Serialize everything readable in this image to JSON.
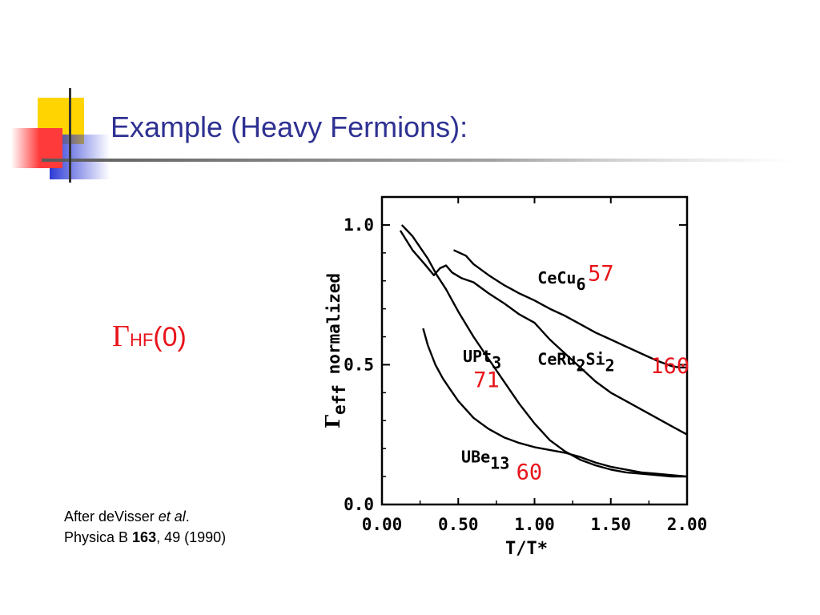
{
  "slide": {
    "title": "Example (Heavy Fermions):",
    "gamma_symbol": "Γ",
    "gamma_subscript": "HF",
    "gamma_argument": "(0)",
    "citation_line1_prefix": "After  deVisser ",
    "citation_line1_italic": "et al",
    "citation_line1_suffix": ".",
    "citation_line2_prefix": "Physica B ",
    "citation_line2_bold": "163",
    "citation_line2_suffix": ", 49 (1990)"
  },
  "colors": {
    "title": "#2e3192",
    "accent_red": "#e8141b",
    "deco_yellow": "#ffd400",
    "deco_blue": "#2e3bd6",
    "deco_red": "#ff3a3a"
  },
  "chart_data": {
    "type": "line",
    "xlabel": "T/T*",
    "ylabel_main": "Γ",
    "ylabel_sub": "eff",
    "ylabel_rest": " normalized",
    "xlim": [
      0.0,
      2.0
    ],
    "ylim": [
      0.0,
      1.1
    ],
    "xticks": [
      0.0,
      0.5,
      1.0,
      1.5,
      2.0
    ],
    "xtick_labels": [
      "0.00",
      "0.50",
      "1.00",
      "1.50",
      "2.00"
    ],
    "yticks": [
      0.0,
      0.5,
      1.0
    ],
    "ytick_labels": [
      "0.0",
      "0.5",
      "1.0"
    ],
    "series": [
      {
        "name": "CeCu6",
        "name_main": "CeCu",
        "name_sub": "6",
        "annotation": "57",
        "points": [
          [
            0.47,
            0.91
          ],
          [
            0.55,
            0.89
          ],
          [
            0.6,
            0.86
          ],
          [
            0.7,
            0.82
          ],
          [
            0.8,
            0.785
          ],
          [
            0.9,
            0.755
          ],
          [
            1.0,
            0.73
          ],
          [
            1.1,
            0.7
          ],
          [
            1.2,
            0.675
          ],
          [
            1.3,
            0.645
          ],
          [
            1.4,
            0.615
          ],
          [
            1.5,
            0.59
          ],
          [
            1.6,
            0.565
          ],
          [
            1.7,
            0.54
          ],
          [
            1.8,
            0.515
          ],
          [
            1.9,
            0.495
          ],
          [
            1.95,
            0.49
          ],
          [
            2.0,
            0.49
          ]
        ]
      },
      {
        "name": "CeRu2Si2",
        "name_main": "CeRu",
        "name_sub": "2",
        "name_main2": "Si",
        "name_sub2": "2",
        "annotation": "160",
        "points": [
          [
            0.12,
            0.98
          ],
          [
            0.2,
            0.91
          ],
          [
            0.28,
            0.86
          ],
          [
            0.34,
            0.82
          ],
          [
            0.38,
            0.845
          ],
          [
            0.42,
            0.855
          ],
          [
            0.46,
            0.83
          ],
          [
            0.52,
            0.81
          ],
          [
            0.6,
            0.795
          ],
          [
            0.7,
            0.755
          ],
          [
            0.8,
            0.72
          ],
          [
            0.9,
            0.68
          ],
          [
            1.0,
            0.65
          ],
          [
            1.1,
            0.59
          ],
          [
            1.2,
            0.54
          ],
          [
            1.3,
            0.49
          ],
          [
            1.4,
            0.44
          ],
          [
            1.5,
            0.4
          ],
          [
            1.6,
            0.37
          ],
          [
            1.7,
            0.34
          ],
          [
            1.8,
            0.31
          ],
          [
            1.9,
            0.28
          ],
          [
            2.0,
            0.25
          ]
        ]
      },
      {
        "name": "UPt3",
        "name_main": "UPt",
        "name_sub": "3",
        "annotation": "71",
        "points": [
          [
            0.13,
            1.0
          ],
          [
            0.2,
            0.96
          ],
          [
            0.25,
            0.92
          ],
          [
            0.3,
            0.88
          ],
          [
            0.36,
            0.82
          ],
          [
            0.42,
            0.77
          ],
          [
            0.5,
            0.69
          ],
          [
            0.6,
            0.6
          ],
          [
            0.7,
            0.52
          ],
          [
            0.8,
            0.44
          ],
          [
            0.9,
            0.36
          ],
          [
            1.0,
            0.29
          ],
          [
            1.1,
            0.23
          ],
          [
            1.2,
            0.19
          ],
          [
            1.3,
            0.16
          ],
          [
            1.4,
            0.14
          ],
          [
            1.5,
            0.125
          ],
          [
            1.6,
            0.115
          ],
          [
            1.7,
            0.11
          ],
          [
            1.8,
            0.105
          ],
          [
            1.9,
            0.1
          ],
          [
            2.0,
            0.1
          ]
        ]
      },
      {
        "name": "UBe13",
        "name_main": "UBe",
        "name_sub": "13",
        "annotation": "60",
        "points": [
          [
            0.27,
            0.63
          ],
          [
            0.3,
            0.57
          ],
          [
            0.35,
            0.5
          ],
          [
            0.4,
            0.45
          ],
          [
            0.45,
            0.41
          ],
          [
            0.5,
            0.37
          ],
          [
            0.55,
            0.34
          ],
          [
            0.6,
            0.31
          ],
          [
            0.65,
            0.29
          ],
          [
            0.7,
            0.27
          ],
          [
            0.8,
            0.24
          ],
          [
            0.9,
            0.22
          ],
          [
            1.0,
            0.205
          ],
          [
            1.1,
            0.195
          ],
          [
            1.2,
            0.185
          ],
          [
            1.3,
            0.17
          ],
          [
            1.4,
            0.15
          ],
          [
            1.5,
            0.135
          ],
          [
            1.6,
            0.125
          ],
          [
            1.7,
            0.115
          ],
          [
            1.8,
            0.11
          ],
          [
            1.9,
            0.105
          ],
          [
            2.0,
            0.1
          ]
        ]
      }
    ]
  }
}
